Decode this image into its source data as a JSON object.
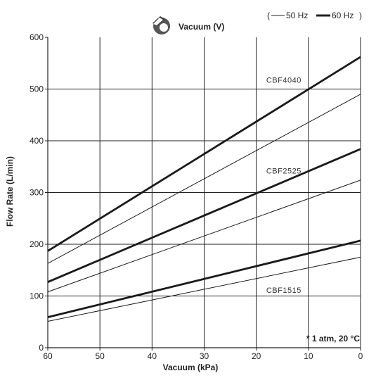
{
  "chart_data": {
    "type": "line",
    "title": "Vacuum (V)",
    "xlabel": "Vacuum (kPa)",
    "ylabel": "Flow Rate (L/min)",
    "xlim": [
      60,
      0
    ],
    "ylim": [
      0,
      600
    ],
    "x_ticks": [
      60,
      50,
      40,
      30,
      20,
      10,
      0
    ],
    "y_ticks": [
      0,
      100,
      200,
      300,
      400,
      500,
      600
    ],
    "grid": true,
    "legend": {
      "placement": "top-right",
      "open": "(",
      "close": ")",
      "entries": [
        {
          "label": "50 Hz",
          "style": "thin"
        },
        {
          "label": "60 Hz",
          "style": "thick"
        }
      ]
    },
    "note": "* 1 atm, 20 °C",
    "series": [
      {
        "name": "CBF4040",
        "freq": "60 Hz",
        "style": "thick",
        "x": [
          60,
          0
        ],
        "y": [
          187,
          562
        ],
        "label_at": [
          10,
          512
        ]
      },
      {
        "name": "",
        "freq": "50 Hz",
        "style": "thin",
        "x": [
          60,
          0
        ],
        "y": [
          163,
          490
        ]
      },
      {
        "name": "CBF2525",
        "freq": "60 Hz",
        "style": "thick",
        "x": [
          60,
          0
        ],
        "y": [
          127,
          384
        ],
        "label_at": [
          10,
          337
        ]
      },
      {
        "name": "",
        "freq": "50 Hz",
        "style": "thin",
        "x": [
          60,
          0
        ],
        "y": [
          108,
          324
        ]
      },
      {
        "name": "CBF1515",
        "freq": "60 Hz",
        "style": "thick",
        "x": [
          60,
          0
        ],
        "y": [
          59,
          207
        ],
        "label_at": [
          10,
          106
        ]
      },
      {
        "name": "",
        "freq": "50 Hz",
        "style": "thin",
        "x": [
          60,
          0
        ],
        "y": [
          51,
          175
        ]
      }
    ]
  }
}
